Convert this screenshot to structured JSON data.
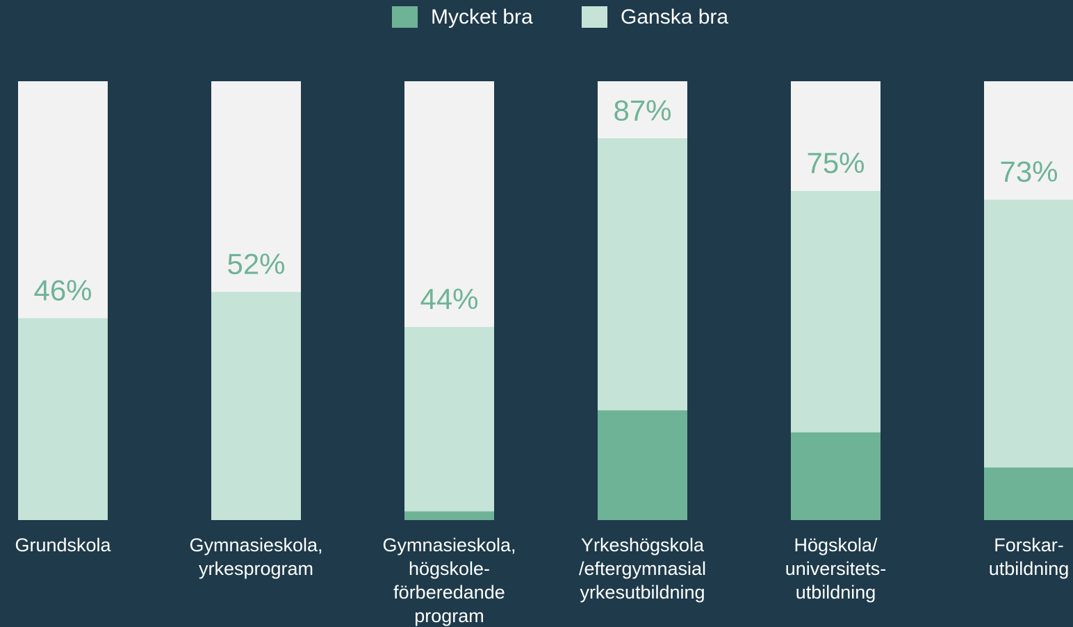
{
  "chart_data": {
    "type": "stacked_bar",
    "categories": [
      "Grundskola",
      "Gymnasieskola,\nyrkesprogram",
      "Gymnasieskola,\nhögskole-\nförberedande\nprogram",
      "Yrkeshögskola\n/eftergymnasial\nyrkesutbildning",
      "Högskola/\nuniversitets-\nutbildning",
      "Forskar-\nutbildning"
    ],
    "series": [
      {
        "name": "Mycket bra",
        "color": "#6fb396",
        "values": [
          0,
          0,
          2,
          25,
          20,
          12
        ]
      },
      {
        "name": "Ganska bra",
        "color": "#c5e3d7",
        "values": [
          46,
          52,
          42,
          62,
          55,
          61
        ]
      }
    ],
    "totals": [
      46,
      52,
      44,
      87,
      75,
      73
    ],
    "total_labels": [
      "46%",
      "52%",
      "44%",
      "87%",
      "75%",
      "73%"
    ],
    "ylim": [
      0,
      100
    ],
    "background_color": "#f2f2f3",
    "total_label_color": "#6fb396"
  }
}
